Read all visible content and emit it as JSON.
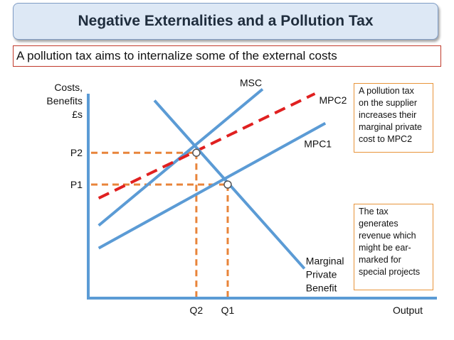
{
  "title": "Negative Externalities and a Pollution Tax",
  "subtitle": "A pollution tax aims to internalize some of the external costs",
  "notes": {
    "tax_cost": [
      "A pollution tax",
      "on the supplier",
      "increases their",
      "marginal private",
      "cost to MPC2"
    ],
    "revenue": [
      "The tax",
      "generates",
      "revenue which",
      "might be ear-",
      "marked for",
      "special projects"
    ]
  },
  "colors": {
    "curve": "#5b9bd5",
    "mpc2": "#e02020",
    "guide": "#e8843a",
    "axis": "#5b9bd5",
    "title_bg": "#dde8f5"
  },
  "chart_data": {
    "type": "line",
    "ylabel": [
      "Costs,",
      "Benefits",
      "£s"
    ],
    "xlabel": "Output",
    "xlim": [
      0,
      10
    ],
    "ylim": [
      0,
      10
    ],
    "series": [
      {
        "name": "MSC",
        "label": "MSC",
        "style": "solid",
        "points": [
          [
            0.3,
            3.2
          ],
          [
            5.0,
            9.2
          ]
        ]
      },
      {
        "name": "MPC2",
        "label": "MPC2",
        "style": "dashed",
        "points": [
          [
            0.3,
            4.4
          ],
          [
            6.5,
            9.0
          ]
        ]
      },
      {
        "name": "MPC1",
        "label": "MPC1",
        "style": "solid",
        "points": [
          [
            0.3,
            2.2
          ],
          [
            6.8,
            7.7
          ]
        ]
      },
      {
        "name": "Marginal Private Benefit",
        "label": [
          "Marginal",
          "Private",
          "Benefit"
        ],
        "style": "solid",
        "points": [
          [
            1.9,
            8.7
          ],
          [
            6.2,
            1.3
          ]
        ]
      }
    ],
    "equilibria": [
      {
        "label_x": "Q2",
        "label_y": "P2",
        "x": 3.1,
        "y": 6.4
      },
      {
        "label_x": "Q1",
        "label_y": "P1",
        "x": 4.0,
        "y": 5.0
      }
    ]
  }
}
